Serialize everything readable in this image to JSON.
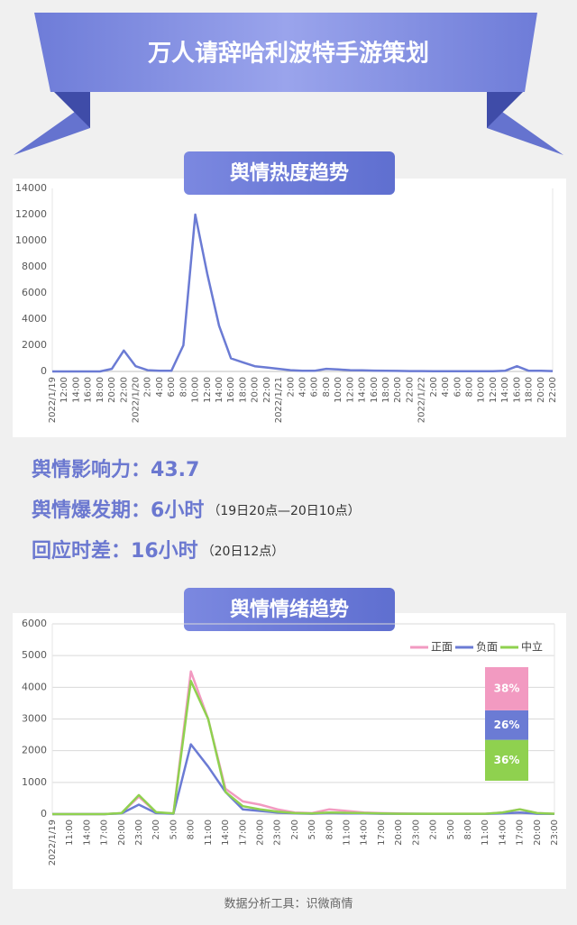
{
  "header": {
    "title": "万人请辞哈利波特手游策划"
  },
  "stats": [
    {
      "label": "舆情影响力：",
      "value": "43.7"
    },
    {
      "label": "舆情爆发期：",
      "value": "6小时",
      "note": "（19日20点—20日10点）"
    },
    {
      "label": "回应时差：",
      "value": "16小时",
      "note": "（20日12点）"
    }
  ],
  "footer": "数据分析工具：识微商情",
  "chart_data": [
    {
      "type": "line",
      "title": "舆情热度趋势",
      "categories": [
        "2022/1/19",
        "12:00",
        "14:00",
        "16:00",
        "18:00",
        "20:00",
        "22:00",
        "2022/1/20",
        "2:00",
        "4:00",
        "6:00",
        "8:00",
        "10:00",
        "12:00",
        "14:00",
        "16:00",
        "18:00",
        "20:00",
        "22:00",
        "2022/1/21",
        "2:00",
        "4:00",
        "6:00",
        "8:00",
        "10:00",
        "12:00",
        "14:00",
        "16:00",
        "18:00",
        "20:00",
        "22:00",
        "2022/1/22",
        "2:00",
        "4:00",
        "6:00",
        "8:00",
        "10:00",
        "12:00",
        "14:00",
        "16:00",
        "18:00",
        "20:00",
        "22:00"
      ],
      "values": [
        0,
        0,
        0,
        0,
        0,
        200,
        1600,
        400,
        100,
        50,
        50,
        2000,
        12000,
        7500,
        3500,
        1000,
        700,
        400,
        300,
        200,
        100,
        50,
        50,
        200,
        150,
        100,
        80,
        60,
        50,
        40,
        30,
        30,
        20,
        20,
        20,
        20,
        20,
        20,
        50,
        400,
        50,
        50,
        30
      ],
      "color": "#6b7bd4",
      "ylim": [
        0,
        14000
      ],
      "yticks": [
        0,
        2000,
        4000,
        6000,
        8000,
        10000,
        12000,
        14000
      ],
      "grid": false
    },
    {
      "type": "line",
      "title": "舆情情绪趋势",
      "categories": [
        "2022/1/19",
        "11:00",
        "14:00",
        "17:00",
        "20:00",
        "23:00",
        "2:00",
        "5:00",
        "8:00",
        "11:00",
        "14:00",
        "17:00",
        "20:00",
        "23:00",
        "2:00",
        "5:00",
        "8:00",
        "11:00",
        "14:00",
        "17:00",
        "20:00",
        "23:00",
        "2:00",
        "5:00",
        "8:00",
        "11:00",
        "14:00",
        "17:00",
        "20:00",
        "23:00"
      ],
      "series": [
        {
          "name": "正面",
          "color": "#f29ac1",
          "values": [
            0,
            0,
            0,
            0,
            30,
            550,
            50,
            20,
            4500,
            3000,
            800,
            400,
            300,
            150,
            50,
            30,
            150,
            100,
            50,
            30,
            20,
            10,
            10,
            10,
            10,
            10,
            50,
            150,
            30,
            10
          ]
        },
        {
          "name": "负面",
          "color": "#6b7bd4",
          "values": [
            0,
            0,
            0,
            0,
            20,
            300,
            30,
            10,
            2200,
            1500,
            700,
            150,
            100,
            50,
            20,
            10,
            30,
            20,
            20,
            10,
            10,
            10,
            5,
            5,
            5,
            5,
            20,
            50,
            10,
            5
          ]
        },
        {
          "name": "中立",
          "color": "#8fd14f",
          "values": [
            0,
            0,
            0,
            0,
            30,
            600,
            60,
            20,
            4200,
            3000,
            700,
            250,
            150,
            80,
            30,
            20,
            50,
            40,
            30,
            20,
            10,
            10,
            10,
            10,
            10,
            10,
            50,
            150,
            30,
            10
          ]
        }
      ],
      "ylim": [
        0,
        6000
      ],
      "yticks": [
        0,
        1000,
        2000,
        3000,
        4000,
        5000,
        6000
      ],
      "grid": true,
      "legend": "top-right"
    },
    {
      "type": "bar",
      "stacked": true,
      "series": [
        {
          "color": "#8fd14f",
          "values": [
            36
          ],
          "value_labels": [
            "36%"
          ]
        },
        {
          "color": "#6b7bd4",
          "values": [
            26
          ],
          "value_labels": [
            "26%"
          ]
        },
        {
          "color": "#f29ac1",
          "values": [
            38
          ],
          "value_labels": [
            "38%"
          ]
        }
      ]
    }
  ]
}
